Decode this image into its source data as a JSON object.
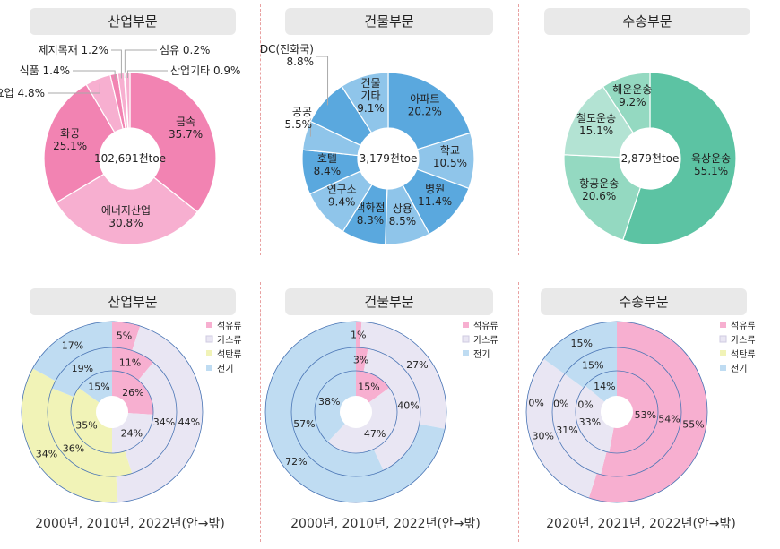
{
  "chart_data": [
    {
      "type": "pie",
      "title": "산업부문",
      "center_label": "102,691천toe",
      "slices": [
        {
          "label": "금속",
          "value": 35.7,
          "text": "35.7%",
          "color": "#f283b2"
        },
        {
          "label": "에너지산업",
          "value": 30.8,
          "text": "30.8%",
          "color": "#f7afd0"
        },
        {
          "label": "화공",
          "value": 25.1,
          "text": "25.1%",
          "color": "#f283b2"
        },
        {
          "label": "요업",
          "value": 4.8,
          "text": "4.8%",
          "color": "#f7afd0"
        },
        {
          "label": "식품",
          "value": 1.4,
          "text": "1.4%",
          "color": "#f283b2"
        },
        {
          "label": "제지목재",
          "value": 1.2,
          "text": "1.2%",
          "color": "#f7afd0"
        },
        {
          "label": "섬유",
          "value": 0.2,
          "text": "0.2%",
          "color": "#f283b2"
        },
        {
          "label": "산업기타",
          "value": 0.9,
          "text": "0.9%",
          "color": "#f7afd0"
        }
      ]
    },
    {
      "type": "pie",
      "title": "건물부문",
      "center_label": "3,179천toe",
      "slices": [
        {
          "label": "아파트",
          "value": 20.2,
          "text": "20.2%",
          "color": "#5aa8de"
        },
        {
          "label": "학교",
          "value": 10.5,
          "text": "10.5%",
          "color": "#8fc5ea"
        },
        {
          "label": "병원",
          "value": 11.4,
          "text": "11.4%",
          "color": "#5aa8de"
        },
        {
          "label": "상용",
          "value": 8.5,
          "text": "8.5%",
          "color": "#8fc5ea"
        },
        {
          "label": "백화점",
          "value": 8.3,
          "text": "8.3%",
          "color": "#5aa8de"
        },
        {
          "label": "연구소",
          "value": 9.4,
          "text": "9.4%",
          "color": "#8fc5ea"
        },
        {
          "label": "호텔",
          "value": 8.4,
          "text": "8.4%",
          "color": "#5aa8de"
        },
        {
          "label": "공공",
          "value": 5.5,
          "text": "5.5%",
          "color": "#8fc5ea"
        },
        {
          "label": "IDC(전화국)",
          "value": 8.8,
          "text": "8.8%",
          "color": "#5aa8de"
        },
        {
          "label": "건물 기타",
          "value": 9.1,
          "text": "9.1%",
          "color": "#8fc5ea"
        }
      ]
    },
    {
      "type": "pie",
      "title": "수송부문",
      "center_label": "2,879천toe",
      "slices": [
        {
          "label": "육상운송",
          "value": 55.1,
          "text": "55.1%",
          "color": "#5cc3a3"
        },
        {
          "label": "항공운송",
          "value": 20.6,
          "text": "20.6%",
          "color": "#94d9c1"
        },
        {
          "label": "철도운송",
          "value": 15.1,
          "text": "15.1%",
          "color": "#b3e3d3"
        },
        {
          "label": "해운운송",
          "value": 9.2,
          "text": "9.2%",
          "color": "#94d9c1"
        }
      ]
    },
    {
      "type": "pie",
      "title": "산업부문",
      "caption": "2000년, 2010년, 2022년(안→밖)",
      "legend": [
        "석유류",
        "가스류",
        "석탄류",
        "전기"
      ],
      "rings": [
        {
          "year": "2000년",
          "values": [
            26,
            24,
            35,
            15
          ]
        },
        {
          "year": "2010년",
          "values": [
            11,
            34,
            36,
            19
          ]
        },
        {
          "year": "2022년",
          "values": [
            5,
            44,
            34,
            17
          ]
        }
      ]
    },
    {
      "type": "pie",
      "title": "건물부문",
      "caption": "2000년, 2010년, 2022년(안→밖)",
      "legend": [
        "석유류",
        "가스류",
        "전기"
      ],
      "rings": [
        {
          "year": "2000년",
          "values": [
            15,
            47,
            38
          ]
        },
        {
          "year": "2010년",
          "values": [
            3,
            40,
            57
          ]
        },
        {
          "year": "2022년",
          "values": [
            1,
            27,
            72
          ]
        }
      ]
    },
    {
      "type": "pie",
      "title": "수송부문",
      "caption": "2020년, 2021년, 2022년(안→밖)",
      "legend": [
        "석유류",
        "가스류",
        "석탄류",
        "전기"
      ],
      "rings": [
        {
          "year": "2020년",
          "values": [
            53,
            33,
            0,
            14
          ]
        },
        {
          "year": "2021년",
          "values": [
            54,
            31,
            0,
            15
          ]
        },
        {
          "year": "2022년",
          "values": [
            55,
            30,
            0,
            15
          ]
        }
      ]
    }
  ],
  "colors": {
    "석유류": "#f7afd0",
    "가스류": "#e9e6f3",
    "석탄류": "#f1f3b7",
    "전기": "#bfdcf2",
    "ring_stroke": "#4a75b5"
  }
}
